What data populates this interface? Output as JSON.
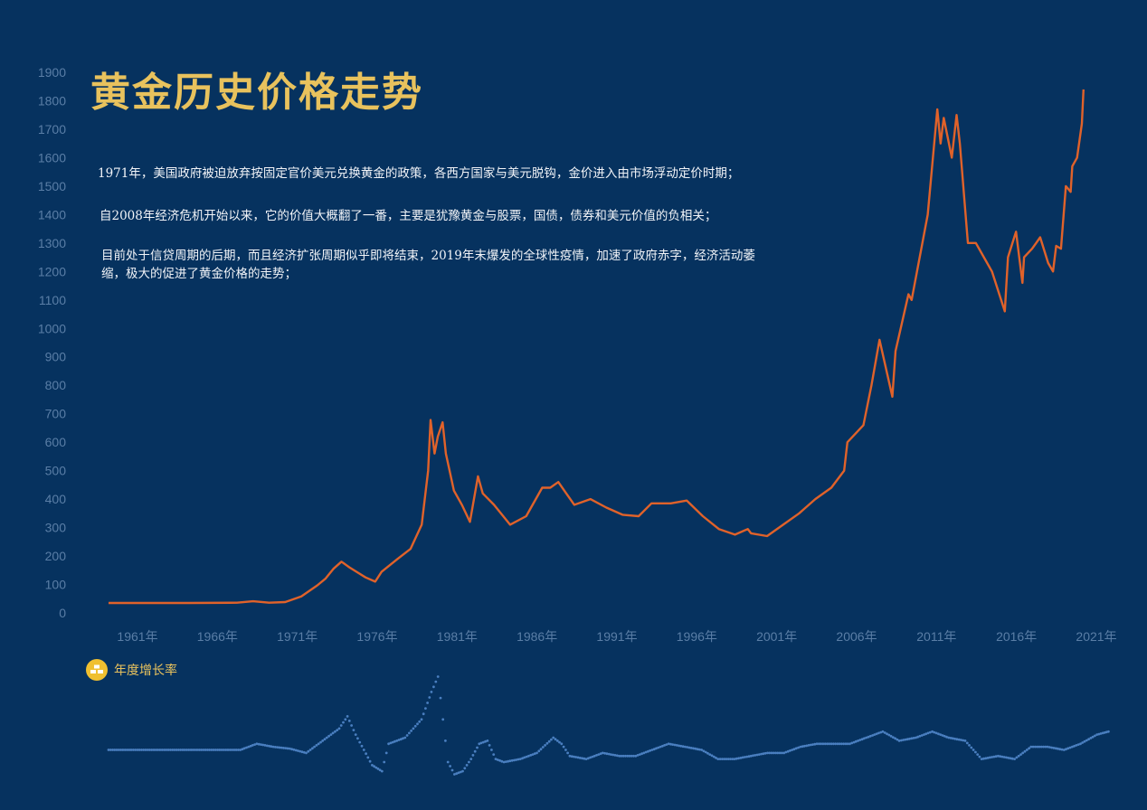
{
  "title": "黄金历史价格走势",
  "notes": [
    "1971年，美国政府被迫放弃按固定官价美元兑换黄金的政策，各西方国家与美元脱钩，金价进入由市场浮动定价时期；",
    "自2008年经济危机开始以来，它的价值大概翻了一番，主要是犹豫黄金与股票，国债，债券和美元价值的负相关；",
    "目前处于信贷周期的后期，而且经济扩张周期似乎即将结束，2019年末爆发的全球性疫情，加速了政府赤字，经济活动萎缩，极大的促进了黄金价格的走势；"
  ],
  "legend": {
    "label": "年度增长率",
    "icon": "gold-bars-icon"
  },
  "colors": {
    "background": "#06325f",
    "price_line": "#e0622a",
    "growth_points": "#4a7fc0",
    "title": "#e8c25d",
    "axis_text": "#5a7ea6"
  },
  "chart_data": [
    {
      "type": "line",
      "series": [
        {
          "values": [
            [
              1960,
              35
            ],
            [
              1965,
              35
            ],
            [
              1968,
              36
            ],
            [
              1969,
              41
            ],
            [
              1970,
              36
            ],
            [
              1971,
              38
            ],
            [
              1972,
              58
            ],
            [
              1973,
              97
            ],
            [
              1973.5,
              120
            ],
            [
              1974,
              155
            ],
            [
              1974.5,
              180
            ],
            [
              1975,
              160
            ],
            [
              1976,
              125
            ],
            [
              1976.6,
              110
            ],
            [
              1977,
              145
            ],
            [
              1978,
              190
            ],
            [
              1978.8,
              225
            ],
            [
              1979.5,
              310
            ],
            [
              1979.9,
              500
            ],
            [
              1980.05,
              678
            ],
            [
              1980.3,
              560
            ],
            [
              1980.5,
              620
            ],
            [
              1980.8,
              670
            ],
            [
              1981,
              560
            ],
            [
              1981.5,
              430
            ],
            [
              1982,
              380
            ],
            [
              1982.5,
              320
            ],
            [
              1983,
              480
            ],
            [
              1983.3,
              420
            ],
            [
              1984,
              380
            ],
            [
              1985,
              310
            ],
            [
              1986,
              340
            ],
            [
              1987,
              440
            ],
            [
              1987.5,
              440
            ],
            [
              1988,
              460
            ],
            [
              1988.5,
              420
            ],
            [
              1989,
              380
            ],
            [
              1990,
              400
            ],
            [
              1991,
              370
            ],
            [
              1992,
              345
            ],
            [
              1993,
              340
            ],
            [
              1993.8,
              385
            ],
            [
              1994,
              385
            ],
            [
              1995,
              385
            ],
            [
              1996,
              395
            ],
            [
              1997,
              340
            ],
            [
              1998,
              295
            ],
            [
              1999,
              275
            ],
            [
              1999.8,
              295
            ],
            [
              2000,
              280
            ],
            [
              2001,
              270
            ],
            [
              2002,
              310
            ],
            [
              2003,
              350
            ],
            [
              2004,
              400
            ],
            [
              2005,
              440
            ],
            [
              2005.8,
              500
            ],
            [
              2006,
              600
            ],
            [
              2006.5,
              630
            ],
            [
              2007,
              660
            ],
            [
              2007.5,
              800
            ],
            [
              2008,
              960
            ],
            [
              2008.8,
              760
            ],
            [
              2009,
              920
            ],
            [
              2009.8,
              1120
            ],
            [
              2010,
              1100
            ],
            [
              2010.5,
              1250
            ],
            [
              2011,
              1400
            ],
            [
              2011.6,
              1770
            ],
            [
              2011.8,
              1650
            ],
            [
              2012,
              1740
            ],
            [
              2012.5,
              1600
            ],
            [
              2012.8,
              1750
            ],
            [
              2013,
              1650
            ],
            [
              2013.5,
              1300
            ],
            [
              2014,
              1300
            ],
            [
              2014.5,
              1250
            ],
            [
              2015,
              1200
            ],
            [
              2015.8,
              1060
            ],
            [
              2016,
              1250
            ],
            [
              2016.5,
              1340
            ],
            [
              2016.9,
              1160
            ],
            [
              2017,
              1250
            ],
            [
              2017.5,
              1280
            ],
            [
              2018,
              1320
            ],
            [
              2018.5,
              1230
            ],
            [
              2018.8,
              1200
            ],
            [
              2019,
              1290
            ],
            [
              2019.3,
              1280
            ],
            [
              2019.6,
              1500
            ],
            [
              2019.9,
              1480
            ],
            [
              2020,
              1570
            ],
            [
              2020.3,
              1600
            ],
            [
              2020.6,
              1720
            ],
            [
              2020.7,
              1840
            ]
          ]
        }
      ],
      "x_tick_labels": [
        "1961年",
        "1966年",
        "1971年",
        "1976年",
        "1981年",
        "1986年",
        "1991年",
        "1996年",
        "2001年",
        "2006年",
        "2011年",
        "2016年",
        "2021年"
      ],
      "y_ticks": [
        0,
        100,
        200,
        300,
        400,
        500,
        600,
        700,
        800,
        900,
        1000,
        1100,
        1200,
        1300,
        1400,
        1500,
        1600,
        1700,
        1800,
        1900
      ],
      "xlim": [
        1960,
        2021.5
      ],
      "ylim": [
        0,
        1900
      ]
    },
    {
      "type": "scatter",
      "series": [
        {
          "values": [
            [
              1960,
              0
            ],
            [
              1965,
              0
            ],
            [
              1968,
              0
            ],
            [
              1969,
              10
            ],
            [
              1970,
              5
            ],
            [
              1971,
              2
            ],
            [
              1972,
              -5
            ],
            [
              1973,
              15
            ],
            [
              1974,
              35
            ],
            [
              1974.5,
              55
            ],
            [
              1975,
              25
            ],
            [
              1976,
              -25
            ],
            [
              1976.6,
              -35
            ],
            [
              1977,
              10
            ],
            [
              1978,
              20
            ],
            [
              1979,
              50
            ],
            [
              1979.6,
              95
            ],
            [
              1980,
              120
            ],
            [
              1980.3,
              50
            ],
            [
              1980.6,
              -20
            ],
            [
              1981,
              -40
            ],
            [
              1981.5,
              -35
            ],
            [
              1982,
              -15
            ],
            [
              1982.5,
              10
            ],
            [
              1983,
              15
            ],
            [
              1983.5,
              -15
            ],
            [
              1984,
              -20
            ],
            [
              1985,
              -15
            ],
            [
              1986,
              -5
            ],
            [
              1987,
              20
            ],
            [
              1987.5,
              10
            ],
            [
              1988,
              -10
            ],
            [
              1989,
              -15
            ],
            [
              1990,
              -5
            ],
            [
              1991,
              -10
            ],
            [
              1992,
              -10
            ],
            [
              1993,
              0
            ],
            [
              1994,
              10
            ],
            [
              1995,
              5
            ],
            [
              1996,
              0
            ],
            [
              1997,
              -15
            ],
            [
              1998,
              -15
            ],
            [
              1999,
              -10
            ],
            [
              2000,
              -5
            ],
            [
              2001,
              -5
            ],
            [
              2002,
              5
            ],
            [
              2003,
              10
            ],
            [
              2004,
              10
            ],
            [
              2005,
              10
            ],
            [
              2006,
              20
            ],
            [
              2007,
              30
            ],
            [
              2008,
              15
            ],
            [
              2009,
              20
            ],
            [
              2010,
              30
            ],
            [
              2011,
              20
            ],
            [
              2012,
              15
            ],
            [
              2013,
              -15
            ],
            [
              2014,
              -10
            ],
            [
              2015,
              -15
            ],
            [
              2016,
              5
            ],
            [
              2017,
              5
            ],
            [
              2018,
              0
            ],
            [
              2019,
              10
            ],
            [
              2020,
              25
            ],
            [
              2020.7,
              30
            ]
          ]
        }
      ],
      "xlim": [
        1960,
        2021.5
      ],
      "ylim": [
        -60,
        140
      ]
    }
  ]
}
